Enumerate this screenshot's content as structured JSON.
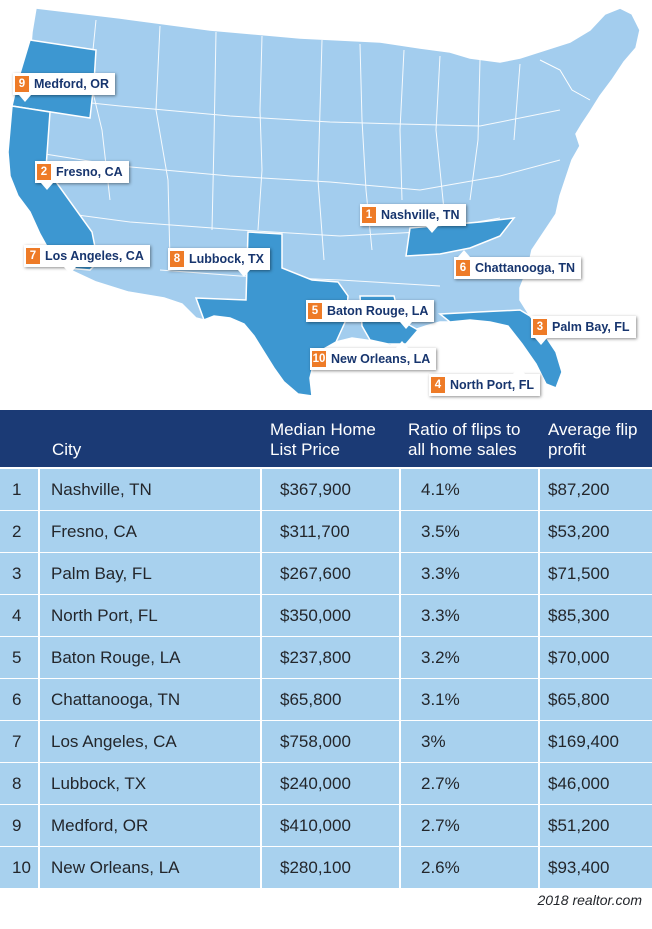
{
  "map": {
    "colors": {
      "base": "#a3cdee",
      "highlight": "#3d97d1",
      "border": "#ffffff",
      "pin_number_bg": "#ee7b27",
      "pin_text": "#17356e"
    },
    "pins": [
      {
        "number": "9",
        "label": "Medford, OR"
      },
      {
        "number": "2",
        "label": "Fresno, CA"
      },
      {
        "number": "1",
        "label": "Nashville, TN"
      },
      {
        "number": "7",
        "label": "Los Angeles, CA"
      },
      {
        "number": "8",
        "label": "Lubbock, TX"
      },
      {
        "number": "6",
        "label": "Chattanooga, TN"
      },
      {
        "number": "5",
        "label": "Baton Rouge, LA"
      },
      {
        "number": "3",
        "label": "Palm Bay, FL"
      },
      {
        "number": "10",
        "label": "New Orleans, LA"
      },
      {
        "number": "4",
        "label": "North Port, FL"
      }
    ]
  },
  "table": {
    "header_color": "#1b3a75",
    "row_color": "#a8d1ee",
    "headers": {
      "city": "City",
      "price": "Median Home List Price",
      "ratio": "Ratio of flips to all home sales",
      "profit": "Average flip profit"
    },
    "rows": [
      {
        "rank": "1",
        "city": "Nashville, TN",
        "price": "$367,900",
        "ratio": "4.1%",
        "profit": "$87,200"
      },
      {
        "rank": "2",
        "city": "Fresno, CA",
        "price": "$311,700",
        "ratio": "3.5%",
        "profit": "$53,200"
      },
      {
        "rank": "3",
        "city": "Palm Bay, FL",
        "price": "$267,600",
        "ratio": "3.3%",
        "profit": "$71,500"
      },
      {
        "rank": "4",
        "city": "North Port, FL",
        "price": "$350,000",
        "ratio": "3.3%",
        "profit": "$85,300"
      },
      {
        "rank": "5",
        "city": "Baton Rouge, LA",
        "price": "$237,800",
        "ratio": "3.2%",
        "profit": "$70,000"
      },
      {
        "rank": "6",
        "city": "Chattanooga, TN",
        "price": "$65,800",
        "ratio": "3.1%",
        "profit": "$65,800"
      },
      {
        "rank": "7",
        "city": "Los Angeles, CA",
        "price": "$758,000",
        "ratio": "3%",
        "profit": "$169,400"
      },
      {
        "rank": "8",
        "city": "Lubbock, TX",
        "price": "$240,000",
        "ratio": "2.7%",
        "profit": "$46,000"
      },
      {
        "rank": "9",
        "city": "Medford, OR",
        "price": "$410,000",
        "ratio": "2.7%",
        "profit": "$51,200"
      },
      {
        "rank": "10",
        "city": "New Orleans, LA",
        "price": "$280,100",
        "ratio": "2.6%",
        "profit": "$93,400"
      }
    ]
  },
  "source": "2018 realtor.com"
}
